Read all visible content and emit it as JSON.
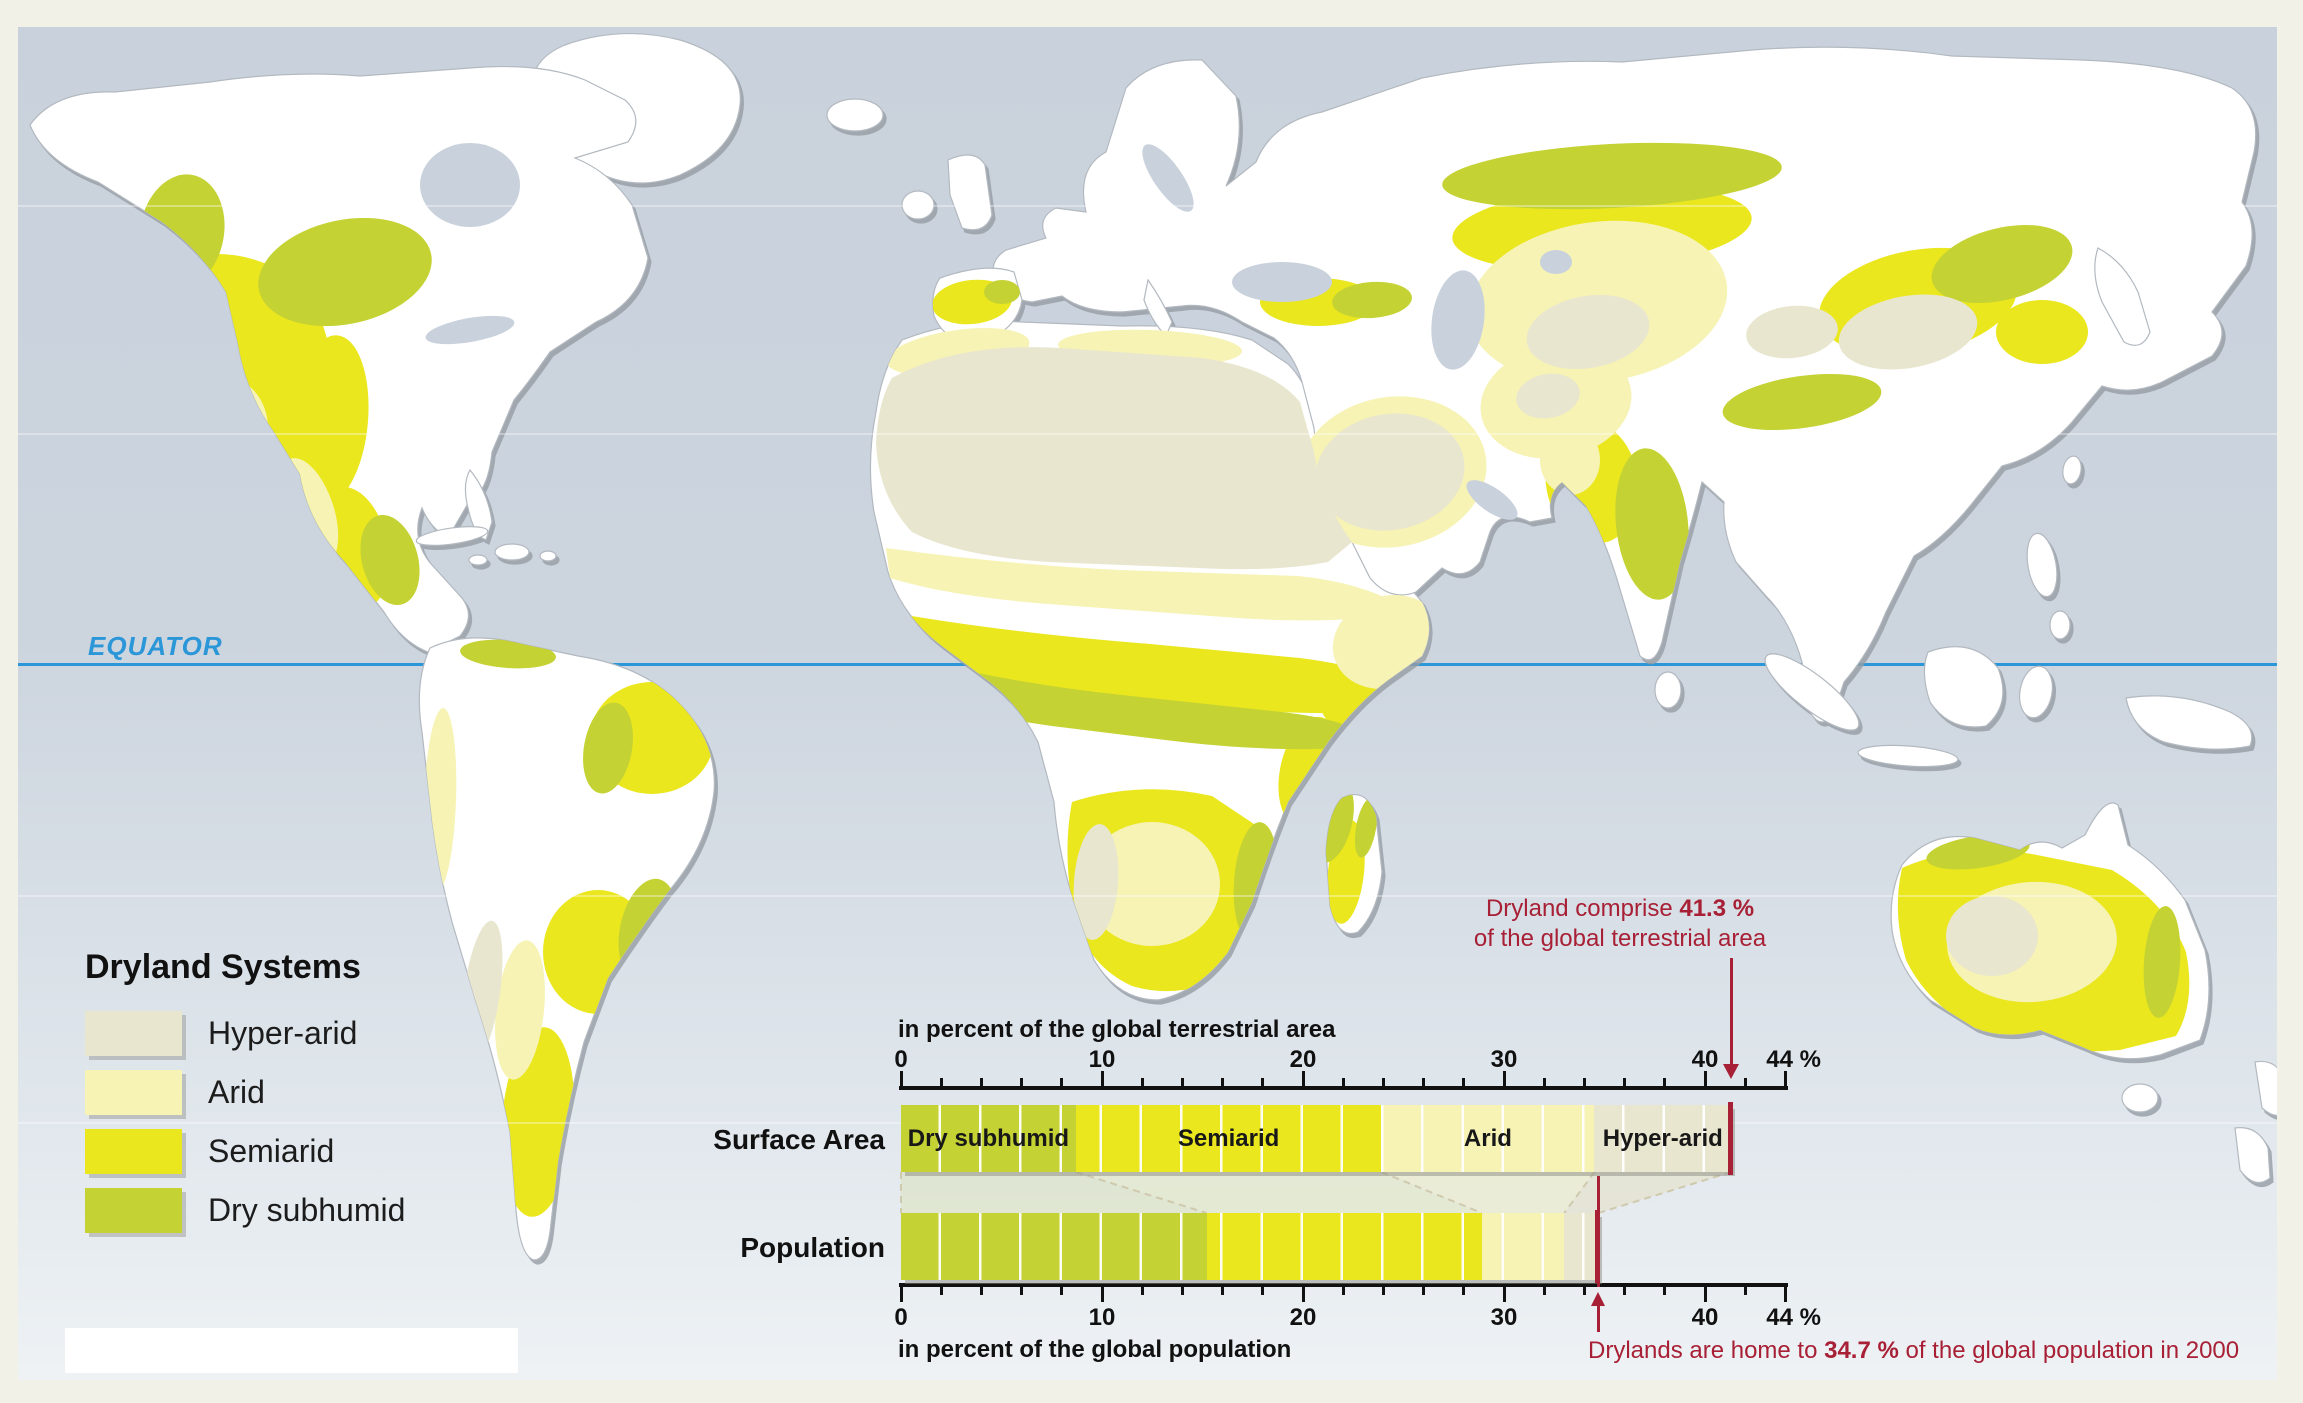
{
  "map": {
    "equator_label": "EQUATOR",
    "equator_color": "#2b97d8",
    "ocean_color_top": "#c9d2dc",
    "ocean_color_bottom": "#eef2f5",
    "land_color": "#ffffff",
    "frame_color": "#f2f1e8"
  },
  "legend": {
    "title": "Dryland Systems",
    "items": [
      {
        "label": "Hyper-arid",
        "color": "#e9e6cf"
      },
      {
        "label": "Arid",
        "color": "#f6f3b4"
      },
      {
        "label": "Semiarid",
        "color": "#eae71f"
      },
      {
        "label": "Dry subhumid",
        "color": "#c5d233"
      }
    ]
  },
  "chart_data": {
    "type": "bar",
    "orientation": "horizontal_stacked",
    "unit": "%",
    "axis": {
      "min": 0,
      "max": 44,
      "minor_tick_step": 2,
      "labeled_ticks": [
        0,
        10,
        20,
        30,
        40,
        44
      ],
      "end_label": "44 %"
    },
    "categories": [
      "Dry subhumid",
      "Semiarid",
      "Arid",
      "Hyper-arid"
    ],
    "colors": {
      "Dry subhumid": "#c5d233",
      "Semiarid": "#eae71f",
      "Arid": "#f6f3b4",
      "Hyper-arid": "#e9e6cf"
    },
    "series": [
      {
        "name": "Surface Area",
        "axis_title": "in percent of the global terrestrial area",
        "show_segment_labels": true,
        "total": 41.3,
        "values": [
          8.7,
          15.2,
          10.6,
          6.8
        ]
      },
      {
        "name": "Population",
        "axis_title": "in percent of the global population",
        "show_segment_labels": false,
        "total": 34.7,
        "values": [
          15.2,
          13.7,
          4.1,
          1.7
        ]
      }
    ],
    "annotations": [
      {
        "target": "Surface Area",
        "value": 41.3,
        "prefix": "Dryland comprise ",
        "bold": "41.3 %",
        "suffix": "",
        "line2": "of the global terrestrial area"
      },
      {
        "target": "Population",
        "value": 34.7,
        "prefix": "Drylands are home to ",
        "bold": "34.7 %",
        "suffix": " of the global population in 2000"
      }
    ],
    "marker_color": "#a82036"
  }
}
